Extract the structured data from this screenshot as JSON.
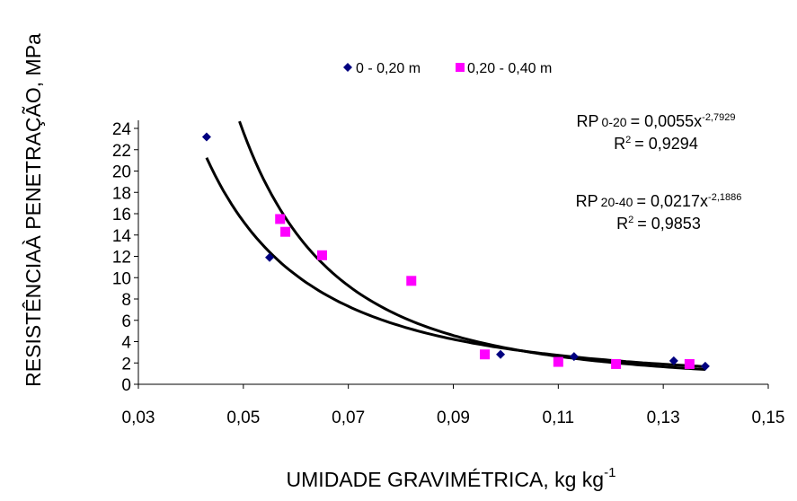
{
  "chart_data": {
    "type": "scatter",
    "xlabel": "UMIDADE GRAVIMÉTRICA, kg kg",
    "xlabel_sup": "-1",
    "ylabel": "RESISTÊNCIAÀ PENETRAÇÃO, MPa",
    "xlim": [
      0.03,
      0.15
    ],
    "ylim": [
      0,
      24
    ],
    "x_ticks": [
      0.03,
      0.05,
      0.07,
      0.09,
      0.11,
      0.13,
      0.15
    ],
    "x_tick_labels": [
      "0,03",
      "0,05",
      "0,07",
      "0,09",
      "0,11",
      "0,13",
      "0,15"
    ],
    "y_ticks": [
      0,
      2,
      4,
      6,
      8,
      10,
      12,
      14,
      16,
      18,
      20,
      22,
      24
    ],
    "y_tick_labels": [
      "0",
      "2",
      "4",
      "6",
      "8",
      "10",
      "12",
      "14",
      "16",
      "18",
      "20",
      "22",
      "24"
    ],
    "grid": false,
    "legend_position": "top",
    "series": [
      {
        "name": "0 - 0,20 m",
        "marker": "diamond",
        "color": "#000080",
        "x": [
          0.043,
          0.055,
          0.099,
          0.113,
          0.132,
          0.138
        ],
        "y": [
          23.2,
          11.9,
          2.8,
          2.6,
          2.2,
          1.7
        ]
      },
      {
        "name": "0,20 - 0,40 m",
        "marker": "square",
        "color": "#ff00ff",
        "x": [
          0.057,
          0.058,
          0.065,
          0.082,
          0.096,
          0.11,
          0.121,
          0.135
        ],
        "y": [
          15.5,
          14.3,
          12.1,
          9.7,
          2.8,
          2.1,
          1.9,
          1.9
        ]
      }
    ],
    "trendlines": [
      {
        "model": "power",
        "coefficient": 0.0055,
        "exponent": -2.7929,
        "x_range": [
          0.0454,
          0.138
        ],
        "label_main": "RP",
        "label_sub": "0-20",
        "label_eq": "= 0,0055x",
        "label_exp": "-2,7929",
        "r2_prefix": "R",
        "r2_sup": "2",
        "r2_value": "= 0,9294"
      },
      {
        "model": "power",
        "coefficient": 0.0217,
        "exponent": -2.1886,
        "x_range": [
          0.043,
          0.138
        ],
        "label_main": "RP",
        "label_sub": "20-40",
        "label_eq": "= 0,0217x",
        "label_exp": "-2,1886",
        "r2_prefix": "R",
        "r2_sup": "2",
        "r2_value": "= 0,9853"
      }
    ]
  }
}
